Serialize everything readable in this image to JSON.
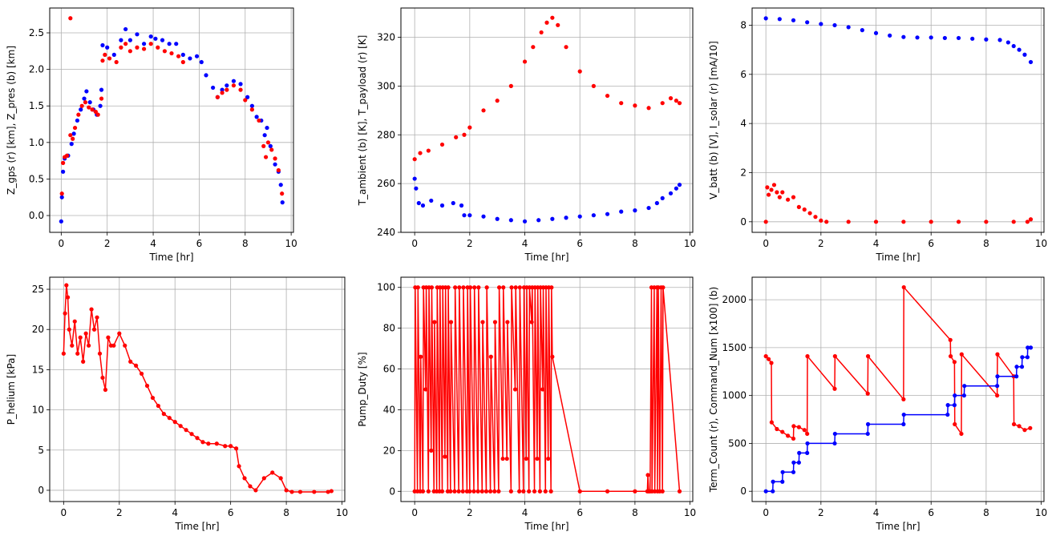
{
  "chart_data": [
    {
      "type": "scatter",
      "xlabel": "Time [hr]",
      "ylabel": "Z_gps (r) [km],  Z_pres (b) [km]",
      "xlim": [
        -0.5,
        10.1
      ],
      "ylim": [
        -0.23,
        2.84
      ],
      "xticks": [
        0,
        2,
        4,
        6,
        8,
        10
      ],
      "yticks": [
        0.0,
        0.5,
        1.0,
        1.5,
        2.0,
        2.5
      ],
      "ytick_labels": [
        "0.0",
        "0.5",
        "1.0",
        "1.5",
        "2.0",
        "2.5"
      ],
      "series": [
        {
          "color": "#0000ff",
          "connect": false,
          "x": [
            0.0,
            0.03,
            0.08,
            0.15,
            0.3,
            0.45,
            0.55,
            0.7,
            0.85,
            1.0,
            1.1,
            1.25,
            1.4,
            1.55,
            1.7,
            1.75,
            1.8,
            2.0,
            2.3,
            2.6,
            2.8,
            3.0,
            3.3,
            3.6,
            3.9,
            4.1,
            4.4,
            4.7,
            5.0,
            5.3,
            5.6,
            5.9,
            6.1,
            6.3,
            6.6,
            6.8,
            7.0,
            7.2,
            7.5,
            7.8,
            8.1,
            8.3,
            8.5,
            8.7,
            8.85,
            8.95,
            9.1,
            9.3,
            9.45,
            9.55,
            9.62
          ],
          "y": [
            -0.08,
            0.25,
            0.6,
            0.78,
            0.82,
            0.98,
            1.12,
            1.3,
            1.45,
            1.6,
            1.7,
            1.55,
            1.45,
            1.38,
            1.5,
            1.72,
            2.33,
            2.3,
            2.2,
            2.4,
            2.55,
            2.4,
            2.48,
            2.35,
            2.45,
            2.42,
            2.4,
            2.35,
            2.35,
            2.2,
            2.15,
            2.18,
            2.1,
            1.92,
            1.75,
            1.62,
            1.72,
            1.78,
            1.84,
            1.8,
            1.62,
            1.5,
            1.35,
            1.3,
            1.1,
            1.2,
            0.95,
            0.7,
            0.6,
            0.42,
            0.18
          ]
        },
        {
          "color": "#ff0000",
          "connect": false,
          "x": [
            0.03,
            0.08,
            0.15,
            0.25,
            0.4,
            0.5,
            0.6,
            0.75,
            0.9,
            1.05,
            1.2,
            1.35,
            1.5,
            1.6,
            1.75,
            1.8,
            1.9,
            2.1,
            2.4,
            2.6,
            2.8,
            3.0,
            3.3,
            3.6,
            3.9,
            4.2,
            4.5,
            4.8,
            5.1,
            5.3,
            6.8,
            7.0,
            7.2,
            7.5,
            7.8,
            8.0,
            8.3,
            8.6,
            8.8,
            8.9,
            9.0,
            9.15,
            9.3,
            9.45,
            9.6
          ],
          "y": [
            0.3,
            0.72,
            0.8,
            0.82,
            1.1,
            1.05,
            1.2,
            1.38,
            1.5,
            1.55,
            1.48,
            1.45,
            1.42,
            1.38,
            1.6,
            2.12,
            2.2,
            2.15,
            2.1,
            2.3,
            2.35,
            2.25,
            2.3,
            2.28,
            2.35,
            2.3,
            2.25,
            2.22,
            2.18,
            2.1,
            1.62,
            1.68,
            1.72,
            1.78,
            1.72,
            1.58,
            1.45,
            1.3,
            0.95,
            0.8,
            1.0,
            0.9,
            0.78,
            0.62,
            0.3
          ]
        },
        {
          "color": "#ff0000",
          "connect": false,
          "x": [
            0.4
          ],
          "y": [
            2.7
          ]
        }
      ]
    },
    {
      "type": "scatter",
      "xlabel": "Time [hr]",
      "ylabel": "T_ambient (b) [K],  T_payload (r) [K]",
      "xlim": [
        -0.5,
        10.1
      ],
      "ylim": [
        240,
        332
      ],
      "xticks": [
        0,
        2,
        4,
        6,
        8,
        10
      ],
      "yticks": [
        240,
        260,
        280,
        300,
        320
      ],
      "ytick_labels": [
        "240",
        "260",
        "280",
        "300",
        "320"
      ],
      "series": [
        {
          "color": "#ff0000",
          "connect": false,
          "x": [
            0.0,
            0.2,
            0.5,
            1.0,
            1.5,
            1.8,
            2.0,
            2.5,
            3.0,
            3.5,
            4.0,
            4.3,
            4.6,
            4.8,
            5.0,
            5.2,
            5.5,
            6.0,
            6.5,
            7.0,
            7.5,
            8.0,
            8.5,
            9.0,
            9.3,
            9.5,
            9.62
          ],
          "y": [
            270,
            272.5,
            273.5,
            276,
            279,
            280,
            283,
            290,
            294,
            300,
            310,
            316,
            322,
            326,
            328,
            325,
            316,
            306,
            300,
            296,
            293,
            292,
            291,
            293,
            295,
            294,
            293
          ]
        },
        {
          "color": "#0000ff",
          "connect": false,
          "x": [
            0.0,
            0.05,
            0.15,
            0.3,
            0.6,
            1.0,
            1.4,
            1.7,
            1.8,
            2.0,
            2.5,
            3.0,
            3.5,
            4.0,
            4.5,
            5.0,
            5.5,
            6.0,
            6.5,
            7.0,
            7.5,
            8.0,
            8.5,
            8.8,
            9.0,
            9.3,
            9.5,
            9.62
          ],
          "y": [
            262,
            258,
            252,
            251,
            253,
            251,
            252,
            251,
            247,
            247,
            246.5,
            245.5,
            245,
            244.5,
            245,
            245.5,
            246,
            246.5,
            247,
            247.5,
            248.5,
            249,
            250,
            252,
            254,
            256,
            258,
            259.5
          ]
        }
      ]
    },
    {
      "type": "scatter",
      "xlabel": "Time [hr]",
      "ylabel": "V_batt (b) [V],  I_solar (r) [mA/10]",
      "xlim": [
        -0.5,
        10.1
      ],
      "ylim": [
        -0.43,
        8.7
      ],
      "xticks": [
        0,
        2,
        4,
        6,
        8,
        10
      ],
      "yticks": [
        0,
        2,
        4,
        6,
        8
      ],
      "ytick_labels": [
        "0",
        "2",
        "4",
        "6",
        "8"
      ],
      "series": [
        {
          "color": "#0000ff",
          "connect": false,
          "x": [
            0.0,
            0.5,
            1.0,
            1.5,
            2.0,
            2.5,
            3.0,
            3.5,
            4.0,
            4.5,
            5.0,
            5.5,
            6.0,
            6.5,
            7.0,
            7.5,
            8.0,
            8.5,
            8.8,
            9.0,
            9.2,
            9.4,
            9.62
          ],
          "y": [
            8.28,
            8.25,
            8.2,
            8.12,
            8.05,
            8.0,
            7.92,
            7.8,
            7.68,
            7.58,
            7.52,
            7.5,
            7.5,
            7.48,
            7.48,
            7.45,
            7.42,
            7.4,
            7.3,
            7.15,
            7.0,
            6.8,
            6.5
          ]
        },
        {
          "color": "#ff0000",
          "connect": false,
          "x": [
            0.0,
            0.05,
            0.1,
            0.2,
            0.3,
            0.4,
            0.5,
            0.6,
            0.8,
            1.0,
            1.2,
            1.4,
            1.6,
            1.8,
            2.0,
            2.2,
            3.0,
            4.0,
            5.0,
            6.0,
            7.0,
            8.0,
            9.0,
            9.5,
            9.62
          ],
          "y": [
            0.0,
            1.4,
            1.1,
            1.3,
            1.5,
            1.2,
            1.0,
            1.2,
            0.9,
            1.0,
            0.6,
            0.5,
            0.35,
            0.2,
            0.05,
            0.0,
            0.0,
            0.0,
            0.0,
            0.0,
            0.0,
            0.0,
            0.0,
            0.0,
            0.1
          ]
        }
      ]
    },
    {
      "type": "line",
      "xlabel": "Time [hr]",
      "ylabel": "P_helium [kPa]",
      "xlim": [
        -0.5,
        10.1
      ],
      "ylim": [
        -1.4,
        26.5
      ],
      "xticks": [
        0,
        2,
        4,
        6,
        8,
        10
      ],
      "yticks": [
        0,
        5,
        10,
        15,
        20,
        25
      ],
      "ytick_labels": [
        "0",
        "5",
        "10",
        "15",
        "20",
        "25"
      ],
      "series": [
        {
          "color": "#ff0000",
          "connect": true,
          "x": [
            0.0,
            0.05,
            0.1,
            0.15,
            0.2,
            0.3,
            0.4,
            0.5,
            0.6,
            0.7,
            0.8,
            0.9,
            1.0,
            1.1,
            1.2,
            1.3,
            1.4,
            1.5,
            1.6,
            1.7,
            1.8,
            2.0,
            2.2,
            2.4,
            2.6,
            2.8,
            3.0,
            3.2,
            3.4,
            3.6,
            3.8,
            4.0,
            4.2,
            4.4,
            4.6,
            4.8,
            5.0,
            5.2,
            5.5,
            5.8,
            6.0,
            6.2,
            6.3,
            6.5,
            6.7,
            6.9,
            7.2,
            7.5,
            7.8,
            8.0,
            8.2,
            8.5,
            9.0,
            9.5,
            9.62
          ],
          "y": [
            17,
            22,
            25.5,
            24,
            20,
            18,
            21,
            17,
            19,
            16,
            19.5,
            18,
            22.5,
            20,
            21.5,
            17,
            14,
            12.5,
            19,
            18,
            18,
            19.5,
            18,
            16,
            15.5,
            14.5,
            13,
            11.5,
            10.5,
            9.5,
            9,
            8.5,
            8,
            7.5,
            7,
            6.5,
            6,
            5.8,
            5.8,
            5.5,
            5.5,
            5.2,
            3,
            1.5,
            0.5,
            0.0,
            1.5,
            2.2,
            1.5,
            0.0,
            -0.2,
            -0.2,
            -0.2,
            -0.2,
            -0.1
          ]
        }
      ]
    },
    {
      "type": "line",
      "xlabel": "Time [hr]",
      "ylabel": "Pump_Duty [%]",
      "xlim": [
        -0.5,
        10.1
      ],
      "ylim": [
        -5,
        105
      ],
      "xticks": [
        0,
        2,
        4,
        6,
        8,
        10
      ],
      "yticks": [
        0,
        20,
        40,
        60,
        80,
        100
      ],
      "ytick_labels": [
        "0",
        "20",
        "40",
        "60",
        "80",
        "100"
      ],
      "series": [
        {
          "color": "#ff0000",
          "connect": true,
          "x": [
            0.0,
            0.02,
            0.1,
            0.12,
            0.2,
            0.22,
            0.3,
            0.32,
            0.4,
            0.42,
            0.5,
            0.52,
            0.6,
            0.62,
            0.7,
            0.72,
            0.8,
            0.82,
            0.9,
            0.92,
            1.0,
            1.02,
            1.1,
            1.12,
            1.2,
            1.22,
            1.3,
            1.32,
            1.45,
            1.47,
            1.6,
            1.62,
            1.75,
            1.77,
            1.9,
            1.92,
            2.0,
            2.02,
            2.15,
            2.17,
            2.3,
            2.32,
            2.45,
            2.47,
            2.6,
            2.62,
            2.75,
            2.77,
            2.9,
            2.92,
            3.05,
            3.07,
            3.2,
            3.22,
            3.35,
            3.37,
            3.5,
            3.52,
            3.65,
            3.67,
            3.8,
            3.82,
            3.95,
            3.97,
            4.05,
            4.07,
            4.15,
            4.17,
            4.25,
            4.27,
            4.35,
            4.37,
            4.45,
            4.47,
            4.55,
            4.57,
            4.65,
            4.67,
            4.75,
            4.77,
            4.85,
            4.87,
            4.95,
            4.97,
            5.0,
            6.0,
            7.0,
            8.0,
            8.45,
            8.47,
            8.5,
            8.55,
            8.6,
            8.62,
            8.7,
            8.72,
            8.8,
            8.82,
            8.85,
            8.9,
            8.95,
            9.0,
            9.02,
            9.62
          ],
          "y": [
            0,
            100,
            0,
            100,
            0,
            66,
            0,
            100,
            50,
            100,
            0,
            100,
            20,
            100,
            0,
            83,
            0,
            100,
            0,
            100,
            0,
            100,
            17,
            100,
            0,
            100,
            0,
            83,
            0,
            100,
            0,
            100,
            0,
            100,
            0,
            100,
            0,
            100,
            0,
            100,
            0,
            100,
            0,
            83,
            0,
            100,
            0,
            66,
            0,
            83,
            0,
            100,
            16,
            100,
            16,
            83,
            0,
            100,
            50,
            100,
            0,
            100,
            0,
            100,
            16,
            100,
            0,
            100,
            83,
            100,
            0,
            100,
            16,
            100,
            0,
            100,
            50,
            100,
            0,
            100,
            16,
            100,
            0,
            100,
            66,
            0,
            0,
            0,
            0,
            8,
            0,
            0,
            100,
            0,
            100,
            0,
            100,
            0,
            100,
            0,
            100,
            0,
            100,
            0
          ]
        }
      ]
    },
    {
      "type": "line",
      "xlabel": "Time [hr]",
      "ylabel": "Term_Count (r),  Command_Num [x100] (b)",
      "xlim": [
        -0.5,
        10.1
      ],
      "ylim": [
        -107,
        2235
      ],
      "xticks": [
        0,
        2,
        4,
        6,
        8,
        10
      ],
      "yticks": [
        0,
        500,
        1000,
        1500,
        2000
      ],
      "ytick_labels": [
        "0",
        "500",
        "1000",
        "1500",
        "2000"
      ],
      "series": [
        {
          "color": "#ff0000",
          "connect": true,
          "x": [
            0.0,
            0.1,
            0.2,
            0.21,
            0.4,
            0.6,
            0.8,
            1.0,
            1.01,
            1.2,
            1.4,
            1.5,
            1.51,
            2.5,
            2.51,
            3.7,
            3.71,
            5.0,
            5.01,
            6.7,
            6.71,
            6.85,
            6.86,
            7.1,
            7.11,
            8.4,
            8.41,
            9.0,
            9.01,
            9.2,
            9.4,
            9.6
          ],
          "y": [
            1410,
            1380,
            1340,
            720,
            650,
            620,
            580,
            550,
            680,
            670,
            640,
            600,
            1410,
            1070,
            1410,
            1020,
            1410,
            960,
            2130,
            1580,
            1410,
            1350,
            700,
            600,
            1430,
            1000,
            1430,
            1200,
            700,
            680,
            640,
            660
          ]
        },
        {
          "color": "#0000ff",
          "connect": true,
          "x": [
            0.0,
            0.25,
            0.26,
            0.6,
            0.61,
            1.0,
            1.01,
            1.2,
            1.21,
            1.5,
            1.51,
            2.5,
            2.51,
            3.7,
            3.71,
            5.0,
            5.01,
            6.6,
            6.61,
            6.85,
            6.86,
            7.2,
            7.21,
            8.4,
            8.41,
            9.1,
            9.11,
            9.3,
            9.31,
            9.5,
            9.51,
            9.62
          ],
          "y": [
            0,
            0,
            100,
            100,
            200,
            200,
            300,
            300,
            400,
            400,
            500,
            500,
            600,
            600,
            700,
            700,
            800,
            800,
            900,
            900,
            1000,
            1000,
            1100,
            1100,
            1200,
            1200,
            1300,
            1300,
            1400,
            1400,
            1500,
            1500
          ]
        }
      ]
    }
  ]
}
